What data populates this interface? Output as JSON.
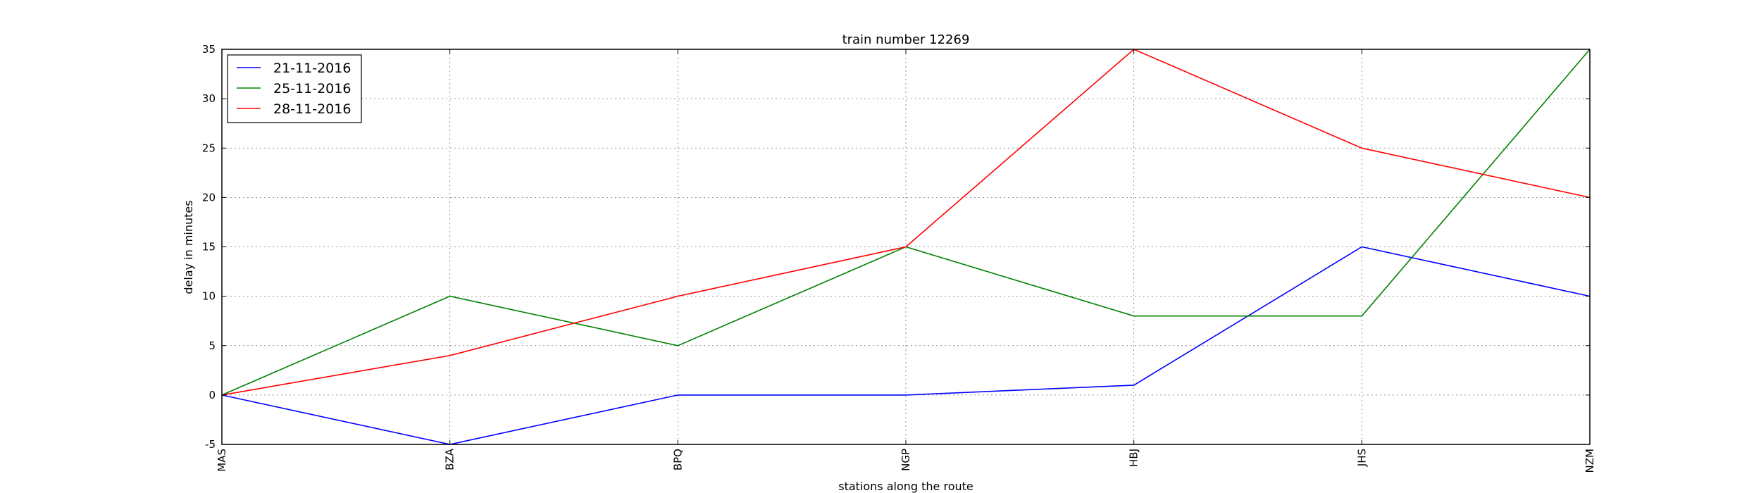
{
  "chart_data": {
    "type": "line",
    "title": "train number 12269",
    "xlabel": "stations along the route",
    "ylabel": "delay in minutes",
    "categories": [
      "MAS",
      "BZA",
      "BPQ",
      "NGP",
      "HBJ",
      "JHS",
      "NZM"
    ],
    "ylim": [
      -5,
      35
    ],
    "yticks": [
      -5,
      0,
      5,
      10,
      15,
      20,
      25,
      30,
      35
    ],
    "grid": true,
    "legend_position": "top-left",
    "series": [
      {
        "name": "21-11-2016",
        "color": "#0000ff",
        "values": [
          0,
          -5,
          0,
          0,
          1,
          15,
          10
        ]
      },
      {
        "name": "25-11-2016",
        "color": "#008000",
        "values": [
          0,
          10,
          5,
          15,
          8,
          8,
          35
        ]
      },
      {
        "name": "28-11-2016",
        "color": "#ff0000",
        "values": [
          0,
          4,
          10,
          15,
          35,
          25,
          20
        ]
      }
    ]
  }
}
